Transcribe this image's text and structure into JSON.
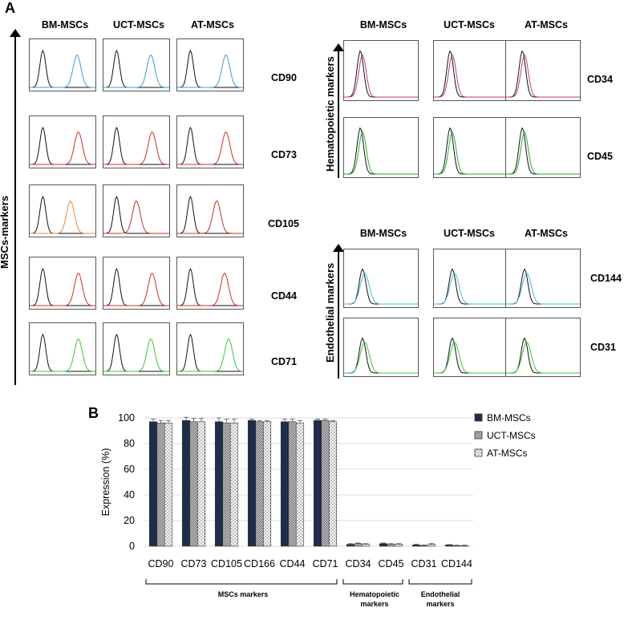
{
  "panelA": {
    "letter": "A",
    "columns": [
      "BM-MSCs",
      "UCT-MSCs",
      "AT-MSCs"
    ],
    "msc_axis_label": "MSCs-markers",
    "msc_rows": [
      {
        "marker": "CD90",
        "color": "#3a9bd5",
        "peaks": [
          0.72,
          0.72,
          0.74
        ]
      },
      {
        "marker": "CD73",
        "color": "#c8332c",
        "peaks": [
          0.74,
          0.74,
          0.74
        ]
      },
      {
        "marker": "CD105",
        "color": "#c8332c",
        "peaks": [
          0.62,
          0.5,
          0.6
        ],
        "alt_color": "#e8883a"
      },
      {
        "marker": "CD44",
        "color": "#c8332c",
        "peaks": [
          0.74,
          0.74,
          0.72
        ]
      },
      {
        "marker": "CD71",
        "color": "#3cc83c",
        "peaks": [
          0.74,
          0.72,
          0.78
        ]
      }
    ],
    "hemato_axis_label": "Hematopoietic markers",
    "hemato_rows": [
      {
        "marker": "CD34",
        "color": "#c03a8a"
      },
      {
        "marker": "CD45",
        "color": "#2eaa2e"
      }
    ],
    "endo_axis_label": "Endothelial markers",
    "endo_rows": [
      {
        "marker": "CD144",
        "color": "#4fb8d8"
      },
      {
        "marker": "CD31",
        "color": "#3cc83c"
      }
    ]
  },
  "panelB": {
    "letter": "B",
    "group_labels": {
      "msc": "MSCs markers",
      "hemato_1": "Hematopoietic",
      "hemato_2": "markers",
      "endo_1": "Endothelial",
      "endo_2": "markers"
    }
  },
  "chart_data": {
    "type": "bar",
    "title": "",
    "xlabel": "",
    "ylabel": "Expression (%)",
    "ylim": [
      0,
      100
    ],
    "yticks": [
      0,
      20,
      40,
      60,
      80,
      100
    ],
    "categories": [
      "CD90",
      "CD73",
      "CD105",
      "CD166",
      "CD44",
      "CD71",
      "CD34",
      "CD45",
      "CD31",
      "CD144"
    ],
    "series": [
      {
        "name": "BM-MSCs",
        "color": "#1f2d4a",
        "values": [
          97,
          98,
          97,
          98,
          97,
          98,
          1.5,
          2,
          1,
          1
        ]
      },
      {
        "name": "UCT-MSCs",
        "color": "#8c8c8c",
        "values": [
          96,
          97,
          96,
          97,
          97,
          98,
          2,
          1.5,
          0.5,
          0.5
        ]
      },
      {
        "name": "AT-MSCs",
        "color": "#e6e6e6",
        "values": [
          96,
          97,
          96,
          97,
          96,
          97,
          1.5,
          1.5,
          1.5,
          0.5
        ]
      }
    ],
    "errors": [
      2,
      2.5,
      3,
      1,
      2,
      1,
      0.5,
      0.5,
      0.5,
      0.3
    ]
  }
}
